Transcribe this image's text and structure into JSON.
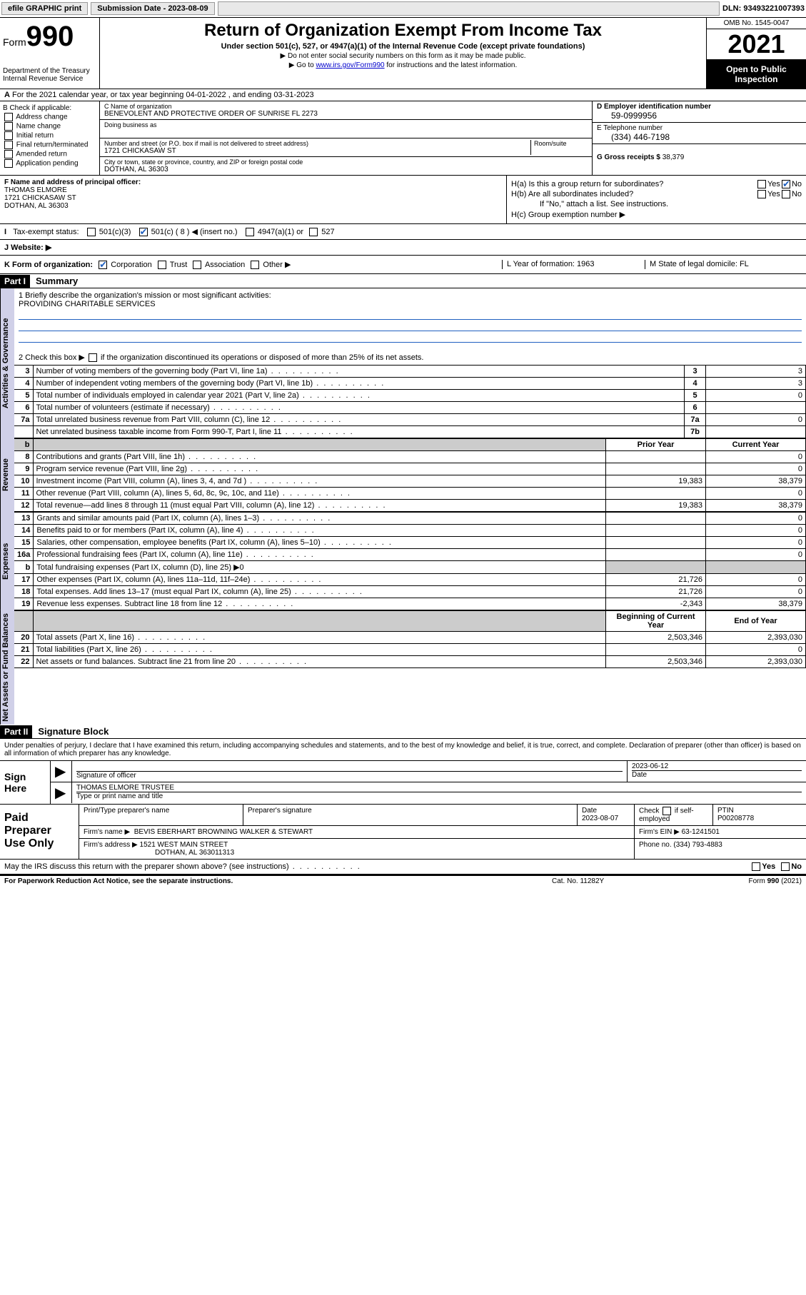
{
  "topbar": {
    "efile": "efile GRAPHIC print",
    "sub_label": "Submission Date - 2023-08-09",
    "dln": "DLN: 93493221007393"
  },
  "header": {
    "form_prefix": "Form",
    "form_num": "990",
    "dept": "Department of the Treasury",
    "irs": "Internal Revenue Service",
    "title": "Return of Organization Exempt From Income Tax",
    "sub": "Under section 501(c), 527, or 4947(a)(1) of the Internal Revenue Code (except private foundations)",
    "note1": "▶ Do not enter social security numbers on this form as it may be made public.",
    "note2_pre": "▶ Go to ",
    "note2_link": "www.irs.gov/Form990",
    "note2_post": " for instructions and the latest information.",
    "omb": "OMB No. 1545-0047",
    "year": "2021",
    "open": "Open to Public Inspection"
  },
  "row_a": "For the 2021 calendar year, or tax year beginning 04-01-2022   , and ending 03-31-2023",
  "box_b": {
    "label": "B Check if applicable:",
    "items": [
      "Address change",
      "Name change",
      "Initial return",
      "Final return/terminated",
      "Amended return",
      "Application pending"
    ]
  },
  "box_c": {
    "name_lab": "C Name of organization",
    "name": "BENEVOLENT AND PROTECTIVE ORDER OF SUNRISE FL 2273",
    "dba_lab": "Doing business as",
    "addr_lab": "Number and street (or P.O. box if mail is not delivered to street address)",
    "room_lab": "Room/suite",
    "addr": "1721 CHICKASAW ST",
    "city_lab": "City or town, state or province, country, and ZIP or foreign postal code",
    "city": "DOTHAN, AL  36303"
  },
  "box_d": {
    "lab": "D Employer identification number",
    "val": "59-0999956"
  },
  "box_e": {
    "lab": "E Telephone number",
    "val": "(334) 446-7198"
  },
  "box_g": {
    "lab": "G Gross receipts $",
    "val": "38,379"
  },
  "box_f": {
    "lab": "F  Name and address of principal officer:",
    "name": "THOMAS ELMORE",
    "addr1": "1721 CHICKASAW ST",
    "addr2": "DOTHAN, AL  36303"
  },
  "box_h": {
    "ha": "H(a)  Is this a group return for subordinates?",
    "hb": "H(b)  Are all subordinates included?",
    "hb_note": "If \"No,\" attach a list. See instructions.",
    "hc": "H(c)  Group exemption number ▶",
    "yes": "Yes",
    "no": "No"
  },
  "row_i": {
    "lab": "Tax-exempt status:",
    "o1": "501(c)(3)",
    "o2": "501(c) ( 8 ) ◀ (insert no.)",
    "o3": "4947(a)(1) or",
    "o4": "527"
  },
  "row_j": {
    "lab": "J   Website: ▶"
  },
  "row_k": {
    "lab": "K Form of organization:",
    "o1": "Corporation",
    "o2": "Trust",
    "o3": "Association",
    "o4": "Other ▶",
    "l": "L Year of formation: 1963",
    "m": "M State of legal domicile: FL"
  },
  "part1": {
    "hdr": "Part I",
    "title": "Summary"
  },
  "mission": {
    "q1": "1  Briefly describe the organization's mission or most significant activities:",
    "text": "PROVIDING CHARITABLE SERVICES",
    "q2_pre": "2   Check this box ▶",
    "q2_post": " if the organization discontinued its operations or disposed of more than 25% of its net assets."
  },
  "tabs": {
    "gov": "Activities & Governance",
    "rev": "Revenue",
    "exp": "Expenses",
    "net": "Net Assets or Fund Balances"
  },
  "gov_rows": [
    {
      "n": "3",
      "d": "Number of voting members of the governing body (Part VI, line 1a)",
      "box": "3",
      "v": "3"
    },
    {
      "n": "4",
      "d": "Number of independent voting members of the governing body (Part VI, line 1b)",
      "box": "4",
      "v": "3"
    },
    {
      "n": "5",
      "d": "Total number of individuals employed in calendar year 2021 (Part V, line 2a)",
      "box": "5",
      "v": "0"
    },
    {
      "n": "6",
      "d": "Total number of volunteers (estimate if necessary)",
      "box": "6",
      "v": ""
    },
    {
      "n": "7a",
      "d": "Total unrelated business revenue from Part VIII, column (C), line 12",
      "box": "7a",
      "v": "0"
    },
    {
      "n": "",
      "d": "Net unrelated business taxable income from Form 990-T, Part I, line 11",
      "box": "7b",
      "v": ""
    }
  ],
  "col_hdr": {
    "b": "b",
    "prior": "Prior Year",
    "curr": "Current Year"
  },
  "rev_rows": [
    {
      "n": "8",
      "d": "Contributions and grants (Part VIII, line 1h)",
      "p": "",
      "c": "0"
    },
    {
      "n": "9",
      "d": "Program service revenue (Part VIII, line 2g)",
      "p": "",
      "c": "0"
    },
    {
      "n": "10",
      "d": "Investment income (Part VIII, column (A), lines 3, 4, and 7d )",
      "p": "19,383",
      "c": "38,379"
    },
    {
      "n": "11",
      "d": "Other revenue (Part VIII, column (A), lines 5, 6d, 8c, 9c, 10c, and 11e)",
      "p": "",
      "c": "0"
    },
    {
      "n": "12",
      "d": "Total revenue—add lines 8 through 11 (must equal Part VIII, column (A), line 12)",
      "p": "19,383",
      "c": "38,379"
    }
  ],
  "exp_rows": [
    {
      "n": "13",
      "d": "Grants and similar amounts paid (Part IX, column (A), lines 1–3)",
      "p": "",
      "c": "0"
    },
    {
      "n": "14",
      "d": "Benefits paid to or for members (Part IX, column (A), line 4)",
      "p": "",
      "c": "0"
    },
    {
      "n": "15",
      "d": "Salaries, other compensation, employee benefits (Part IX, column (A), lines 5–10)",
      "p": "",
      "c": "0"
    },
    {
      "n": "16a",
      "d": "Professional fundraising fees (Part IX, column (A), line 11e)",
      "p": "",
      "c": "0"
    },
    {
      "n": "b",
      "d": "Total fundraising expenses (Part IX, column (D), line 25) ▶0",
      "shade": true
    },
    {
      "n": "17",
      "d": "Other expenses (Part IX, column (A), lines 11a–11d, 11f–24e)",
      "p": "21,726",
      "c": "0"
    },
    {
      "n": "18",
      "d": "Total expenses. Add lines 13–17 (must equal Part IX, column (A), line 25)",
      "p": "21,726",
      "c": "0"
    },
    {
      "n": "19",
      "d": "Revenue less expenses. Subtract line 18 from line 12",
      "p": "-2,343",
      "c": "38,379"
    }
  ],
  "net_hdr": {
    "b": "Beginning of Current Year",
    "e": "End of Year"
  },
  "net_rows": [
    {
      "n": "20",
      "d": "Total assets (Part X, line 16)",
      "p": "2,503,346",
      "c": "2,393,030"
    },
    {
      "n": "21",
      "d": "Total liabilities (Part X, line 26)",
      "p": "",
      "c": "0"
    },
    {
      "n": "22",
      "d": "Net assets or fund balances. Subtract line 21 from line 20",
      "p": "2,503,346",
      "c": "2,393,030"
    }
  ],
  "part2": {
    "hdr": "Part II",
    "title": "Signature Block"
  },
  "sig": {
    "decl": "Under penalties of perjury, I declare that I have examined this return, including accompanying schedules and statements, and to the best of my knowledge and belief, it is true, correct, and complete. Declaration of preparer (other than officer) is based on all information of which preparer has any knowledge.",
    "sign_here": "Sign Here",
    "sig_officer": "Signature of officer",
    "date": "2023-06-12",
    "date_lab": "Date",
    "name": "THOMAS ELMORE  TRUSTEE",
    "name_lab": "Type or print name and title"
  },
  "paid": {
    "title": "Paid Preparer Use Only",
    "h1": "Print/Type preparer's name",
    "h2": "Preparer's signature",
    "h3": "Date",
    "h3v": "2023-08-07",
    "h4": "Check",
    "h4b": "if self-employed",
    "h5": "PTIN",
    "h5v": "P00208778",
    "firm_lab": "Firm's name    ▶",
    "firm": "BEVIS EBERHART BROWNING WALKER & STEWART",
    "ein_lab": "Firm's EIN ▶",
    "ein": "63-1241501",
    "addr_lab": "Firm's address ▶",
    "addr1": "1521 WEST MAIN STREET",
    "addr2": "DOTHAN, AL  363011313",
    "phone_lab": "Phone no.",
    "phone": "(334) 793-4883"
  },
  "may": {
    "q": "May the IRS discuss this return with the preparer shown above? (see instructions)",
    "yes": "Yes",
    "no": "No"
  },
  "footer": {
    "l": "For Paperwork Reduction Act Notice, see the separate instructions.",
    "c": "Cat. No. 11282Y",
    "r": "Form 990 (2021)"
  }
}
